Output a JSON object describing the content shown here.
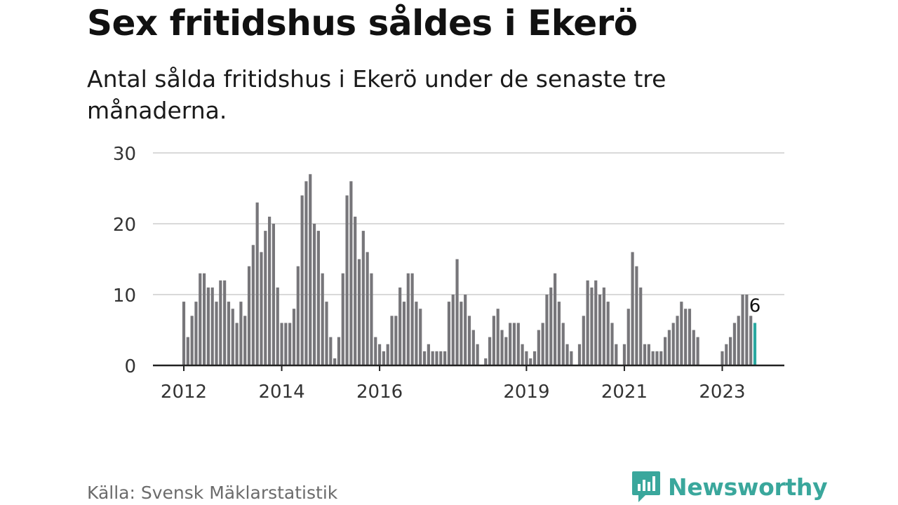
{
  "header": {
    "title": "Sex fritidshus såldes i Ekerö",
    "subtitle": "Antal sålda fritidshus i Ekerö under de senaste tre månaderna."
  },
  "footer": {
    "source": "Källa: Svensk Mäklarstatistik",
    "brand": "Newsworthy",
    "brand_icon": "newsworthy-logo-icon"
  },
  "colors": {
    "bar": "#77767a",
    "highlight": "#2aa8a0",
    "grid": "#d9d9d9",
    "axis": "#222222",
    "brand": "#3aa79c"
  },
  "chart_data": {
    "type": "bar",
    "title": "Sex fritidshus såldes i Ekerö",
    "subtitle": "Antal sålda fritidshus i Ekerö under de senaste tre månaderna.",
    "xlabel": "",
    "ylabel": "",
    "ylim": [
      0,
      30
    ],
    "yticks": [
      0,
      10,
      20,
      30
    ],
    "grid": true,
    "x_start": "2012-01",
    "x_interval": "month",
    "xticks": [
      {
        "label": "2012",
        "month": "2012-01"
      },
      {
        "label": "2014",
        "month": "2014-01"
      },
      {
        "label": "2016",
        "month": "2016-01"
      },
      {
        "label": "2019",
        "month": "2019-01"
      },
      {
        "label": "2021",
        "month": "2021-01"
      },
      {
        "label": "2023",
        "month": "2023-01"
      }
    ],
    "values": [
      9,
      4,
      7,
      9,
      13,
      13,
      11,
      11,
      9,
      12,
      12,
      9,
      8,
      6,
      9,
      7,
      14,
      17,
      23,
      16,
      19,
      21,
      20,
      11,
      6,
      6,
      6,
      8,
      14,
      24,
      26,
      27,
      20,
      19,
      13,
      9,
      4,
      1,
      4,
      13,
      24,
      26,
      21,
      15,
      19,
      16,
      13,
      4,
      3,
      2,
      3,
      7,
      7,
      11,
      9,
      13,
      13,
      9,
      8,
      2,
      3,
      2,
      2,
      2,
      2,
      9,
      10,
      15,
      9,
      10,
      7,
      5,
      3,
      0,
      1,
      4,
      7,
      8,
      5,
      4,
      6,
      6,
      6,
      3,
      2,
      1,
      2,
      5,
      6,
      10,
      11,
      13,
      9,
      6,
      3,
      2,
      0,
      3,
      7,
      12,
      11,
      12,
      10,
      11,
      9,
      6,
      3,
      0,
      3,
      8,
      16,
      14,
      11,
      3,
      3,
      2,
      2,
      2,
      4,
      5,
      6,
      7,
      9,
      8,
      8,
      5,
      4,
      0,
      0,
      0,
      0,
      0,
      2,
      3,
      4,
      6,
      7,
      10,
      10,
      7,
      6
    ],
    "highlight_index": 140,
    "highlight_label": "6"
  }
}
